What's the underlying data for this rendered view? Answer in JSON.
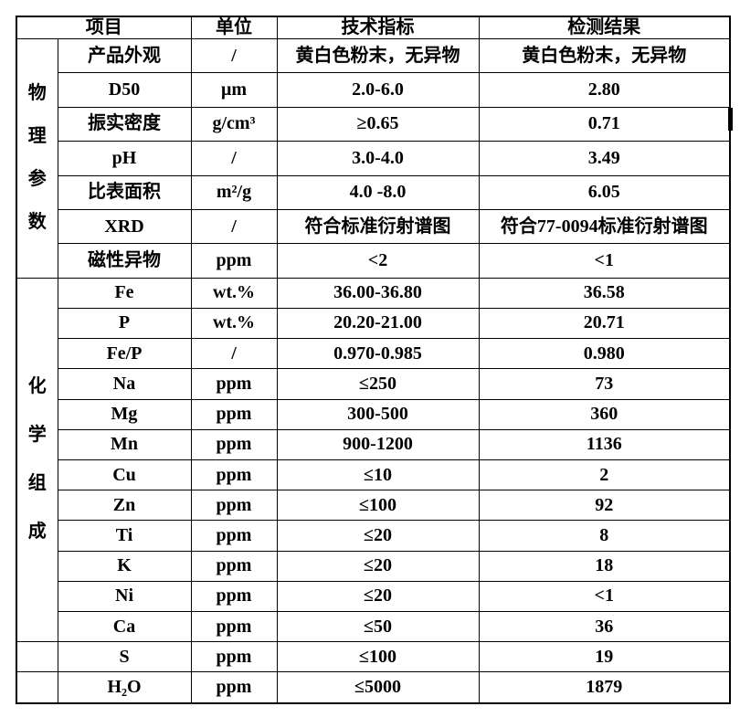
{
  "colors": {
    "border": "#000000",
    "text": "#000000",
    "background": "#ffffff"
  },
  "table": {
    "header": {
      "item_label": "项目",
      "unit_label": "单位",
      "spec_label": "技术指标",
      "result_label": "检测结果"
    },
    "groups": [
      {
        "label": "物理参数",
        "rows": [
          {
            "item": "产品外观",
            "unit": "/",
            "spec": "黄白色粉末，无异物",
            "result": "黄白色粉末，无异物"
          },
          {
            "item": "D50",
            "unit": "μm",
            "spec": "2.0-6.0",
            "result": "2.80"
          },
          {
            "item": "振实密度",
            "unit": "g/cm³",
            "spec": "≥0.65",
            "result": "0.71"
          },
          {
            "item": "pH",
            "unit": "/",
            "spec": "3.0-4.0",
            "result": "3.49"
          },
          {
            "item": "比表面积",
            "unit": "m²/g",
            "spec": "4.0 -8.0",
            "result": "6.05"
          },
          {
            "item": "XRD",
            "unit": "/",
            "spec": "符合标准衍射谱图",
            "result": "符合77-0094标准衍射谱图"
          },
          {
            "item": "磁性异物",
            "unit": "ppm",
            "spec": "<2",
            "result": "<1"
          }
        ]
      },
      {
        "label": "化学组成",
        "rows": [
          {
            "item": "Fe",
            "unit": "wt.%",
            "spec": "36.00-36.80",
            "result": "36.58"
          },
          {
            "item": "P",
            "unit": "wt.%",
            "spec": "20.20-21.00",
            "result": "20.71"
          },
          {
            "item": "Fe/P",
            "unit": "/",
            "spec": "0.970-0.985",
            "result": "0.980"
          },
          {
            "item": "Na",
            "unit": "ppm",
            "spec": "≤250",
            "result": "73"
          },
          {
            "item": "Mg",
            "unit": "ppm",
            "spec": "300-500",
            "result": "360"
          },
          {
            "item": "Mn",
            "unit": "ppm",
            "spec": "900-1200",
            "result": "1136"
          },
          {
            "item": "Cu",
            "unit": "ppm",
            "spec": "≤10",
            "result": "2"
          },
          {
            "item": "Zn",
            "unit": "ppm",
            "spec": "≤100",
            "result": "92"
          },
          {
            "item": "Ti",
            "unit": "ppm",
            "spec": "≤20",
            "result": "8"
          },
          {
            "item": "K",
            "unit": "ppm",
            "spec": "≤20",
            "result": "18"
          },
          {
            "item": "Ni",
            "unit": "ppm",
            "spec": "≤20",
            "result": "<1"
          },
          {
            "item": "Ca",
            "unit": "ppm",
            "spec": "≤50",
            "result": "36"
          }
        ]
      },
      {
        "label": "",
        "rows": [
          {
            "item": "S",
            "unit": "ppm",
            "spec": "≤100",
            "result": "19"
          }
        ]
      },
      {
        "label": "",
        "rows": [
          {
            "item": "H₂O",
            "unit": "ppm",
            "spec": "≤5000",
            "result": "1879"
          }
        ]
      }
    ]
  }
}
